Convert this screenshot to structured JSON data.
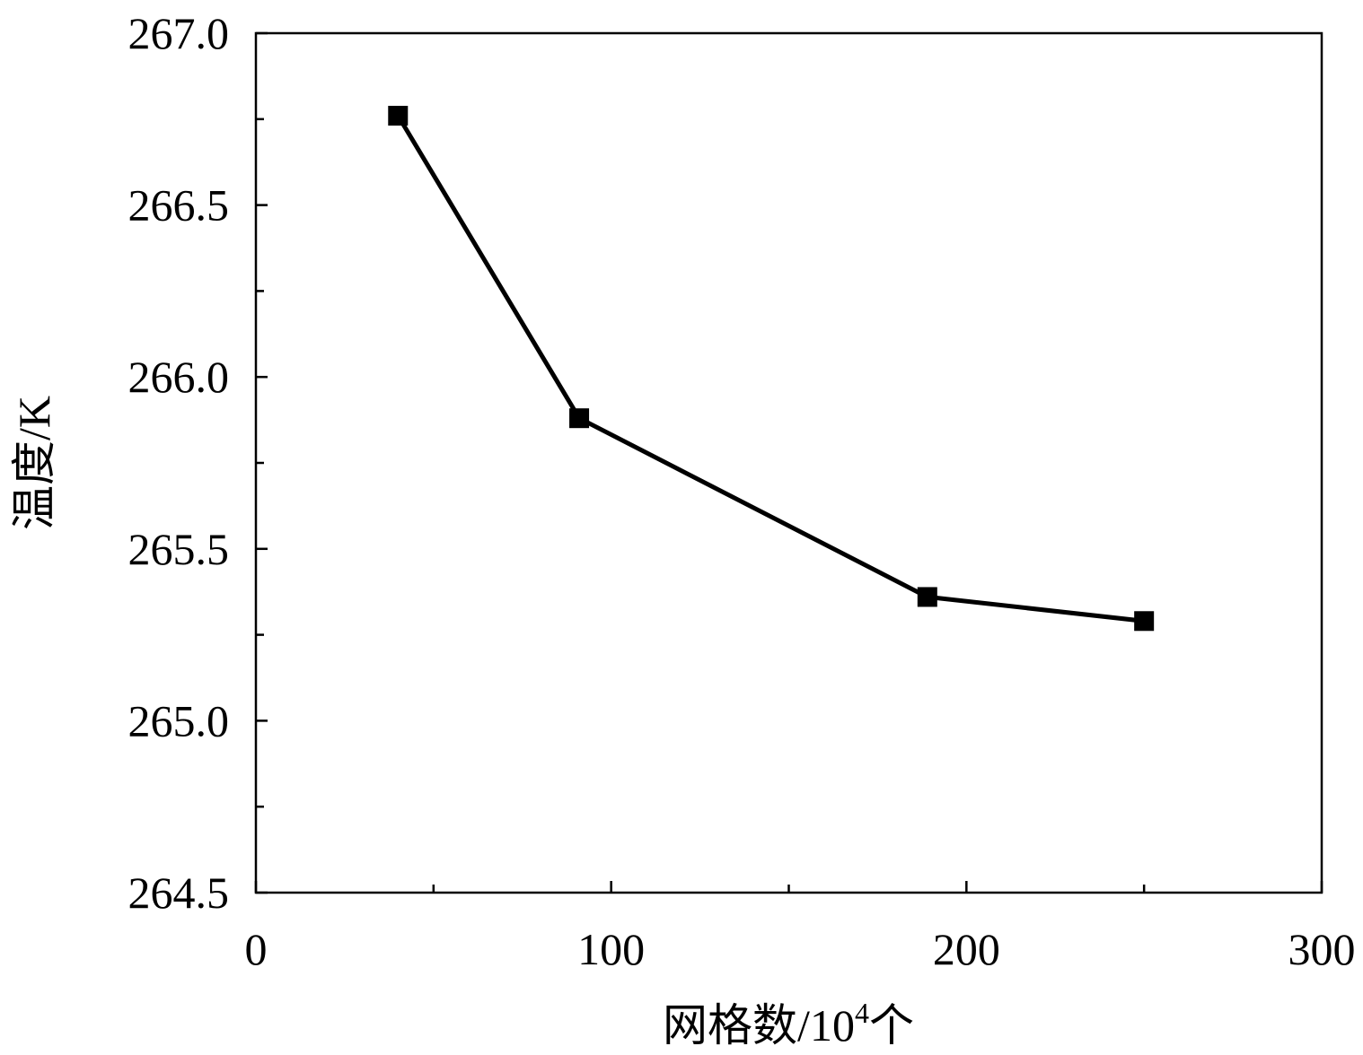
{
  "chart_data": {
    "type": "line",
    "title": "",
    "xlabel": "网格数/10",
    "xlabel_superscript": "4",
    "xlabel_suffix": "个",
    "ylabel": "温度/K",
    "xlim": [
      0,
      300
    ],
    "ylim": [
      264.5,
      267.0
    ],
    "xticks": [
      0,
      100,
      200,
      300
    ],
    "xtick_labels": [
      "0",
      "100",
      "200",
      "300"
    ],
    "x_minor_ticks": [
      50,
      150,
      250
    ],
    "yticks": [
      264.5,
      265.0,
      265.5,
      266.0,
      266.5,
      267.0
    ],
    "ytick_labels": [
      "264.5",
      "265.0",
      "265.5",
      "266.0",
      "266.5",
      "267.0"
    ],
    "y_minor_ticks": [
      264.75,
      265.25,
      265.75,
      266.25,
      266.75
    ],
    "grid": false,
    "legend": "none",
    "marker": "square",
    "line_color": "#000000",
    "series": [
      {
        "x": [
          40,
          91,
          189,
          250
        ],
        "y": [
          266.76,
          265.88,
          265.36,
          265.29
        ]
      }
    ]
  }
}
